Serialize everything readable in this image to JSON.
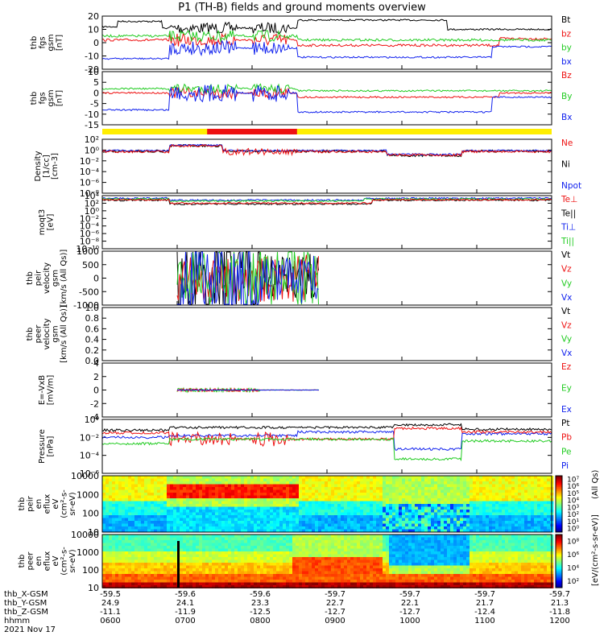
{
  "title": "P1 (TH-B) fields and ground moments overview",
  "colors": {
    "black": "#000000",
    "red": "#ee1111",
    "green": "#22cc22",
    "blue": "#1122ee",
    "orbit_yellow": "#ffee00",
    "orbit_red": "#ee1111"
  },
  "chart_data": [
    {
      "type": "line",
      "ylabel": [
        "thb",
        "fgs",
        "gsm",
        "[nT]"
      ],
      "ylim": [
        -20,
        20
      ],
      "yticks": [
        20,
        10,
        0,
        -10,
        -20
      ],
      "legend": [
        {
          "label": "Bt",
          "color": "#000000"
        },
        {
          "label": "bz",
          "color": "#ee1111"
        },
        {
          "label": "by",
          "color": "#22cc22"
        },
        {
          "label": "bx",
          "color": "#1122ee"
        }
      ]
    },
    {
      "type": "line",
      "ylabel": [
        "thb",
        "fgs",
        "gsm",
        "[nT]"
      ],
      "ylim": [
        -15,
        10
      ],
      "yticks": [
        10,
        5,
        0,
        -5,
        -10,
        -15
      ],
      "legend": [
        {
          "label": "Bz",
          "color": "#ee1111"
        },
        {
          "label": "By",
          "color": "#22cc22"
        },
        {
          "label": "Bx",
          "color": "#1122ee"
        }
      ]
    },
    {
      "type": "line",
      "ylabel": [
        "Density",
        "[1/cc]",
        "[cm-3]"
      ],
      "scale": "log",
      "yticks": [
        "10²",
        "10⁰",
        "10⁻²",
        "10⁻⁴",
        "10⁻⁶",
        "10⁻⁸"
      ],
      "legend": [
        {
          "label": "Ne",
          "color": "#ee1111"
        },
        {
          "label": "Ni",
          "color": "#000000"
        },
        {
          "label": "Npot",
          "color": "#1122ee"
        }
      ]
    },
    {
      "type": "line",
      "ylabel": [
        "moqt3",
        "[eV]"
      ],
      "scale": "log",
      "yticks": [
        "10⁴",
        "10²",
        "10⁰",
        "10⁻²",
        "10⁻⁴",
        "10⁻⁶",
        "10⁻⁸",
        "10⁻¹⁰"
      ],
      "legend": [
        {
          "label": "Te⊥",
          "color": "#ee1111"
        },
        {
          "label": "Te||",
          "color": "#000000"
        },
        {
          "label": "Ti⊥",
          "color": "#1122ee"
        },
        {
          "label": "Ti||",
          "color": "#22cc22"
        }
      ]
    },
    {
      "type": "line",
      "ylabel": [
        "thb",
        "peir",
        "velocity",
        "gsm",
        "[km/s (All Qs)]"
      ],
      "ylim": [
        -1000,
        1000
      ],
      "yticks": [
        1000,
        500,
        0,
        -500,
        -1000
      ],
      "legend": [
        {
          "label": "Vt",
          "color": "#000000"
        },
        {
          "label": "Vz",
          "color": "#ee1111"
        },
        {
          "label": "Vy",
          "color": "#22cc22"
        },
        {
          "label": "Vx",
          "color": "#1122ee"
        }
      ]
    },
    {
      "type": "line",
      "ylabel": [
        "thb",
        "peer",
        "velocity",
        "gsm",
        "[km/s (All Qs)]"
      ],
      "ylim": [
        0,
        1
      ],
      "yticks": [
        "1.0",
        "0.8",
        "0.6",
        "0.4",
        "0.2",
        "0.0"
      ],
      "legend": [
        {
          "label": "Vt",
          "color": "#000000"
        },
        {
          "label": "Vz",
          "color": "#ee1111"
        },
        {
          "label": "Vy",
          "color": "#22cc22"
        },
        {
          "label": "Vx",
          "color": "#1122ee"
        }
      ]
    },
    {
      "type": "line",
      "ylabel": [
        "E=-VxB",
        "[mV/m]"
      ],
      "ylim": [
        -4,
        4
      ],
      "yticks": [
        4,
        2,
        0,
        -2,
        -4
      ],
      "legend": [
        {
          "label": "Ez",
          "color": "#ee1111"
        },
        {
          "label": "Ey",
          "color": "#22cc22"
        },
        {
          "label": "Ex",
          "color": "#1122ee"
        }
      ]
    },
    {
      "type": "line",
      "ylabel": [
        "Pressure",
        "[nPa]"
      ],
      "scale": "log",
      "yticks": [
        "10⁰",
        "10⁻²",
        "10⁻⁴",
        "10⁻⁶"
      ],
      "legend": [
        {
          "label": "Pt",
          "color": "#000000"
        },
        {
          "label": "Pb",
          "color": "#ee1111"
        },
        {
          "label": "Pe",
          "color": "#22cc22"
        },
        {
          "label": "Pi",
          "color": "#1122ee"
        }
      ]
    },
    {
      "type": "heatmap",
      "ylabel": [
        "thb",
        "peir",
        "en",
        "eflux",
        "eV",
        "(cm²-s-",
        "sr-eV)"
      ],
      "yticks": [
        "10000",
        "1000",
        "100",
        "10"
      ]
    },
    {
      "type": "heatmap",
      "ylabel": [
        "thb",
        "peer",
        "en",
        "eflux",
        "eV",
        "(cm²-s-",
        "sr-eV)"
      ],
      "yticks": [
        "10000",
        "1000",
        "100",
        "10"
      ]
    }
  ],
  "colorbar": {
    "label": "[eV/(cm²-s-sr-eV)]",
    "overlay_label": "(All Qs)",
    "ion_ticks": [
      "10⁷",
      "10⁶",
      "10⁵",
      "10⁴",
      "10³",
      "10²",
      "10¹",
      "10⁰"
    ],
    "elec_ticks": [
      "10⁸",
      "10⁶",
      "10⁴",
      "10²"
    ]
  },
  "x_axis": {
    "row_labels": [
      "thb_X-GSM",
      "thb_Y-GSM",
      "thb_Z-GSM",
      "hhmm",
      "2021 Nov 17"
    ],
    "ticks": [
      {
        "x_gsm": "-59.5",
        "y_gsm": "24.9",
        "z_gsm": "-11.1",
        "hhmm": "0600"
      },
      {
        "x_gsm": "-59.6",
        "y_gsm": "24.1",
        "z_gsm": "-11.9",
        "hhmm": "0700"
      },
      {
        "x_gsm": "-59.6",
        "y_gsm": "23.3",
        "z_gsm": "-12.5",
        "hhmm": "0800"
      },
      {
        "x_gsm": "-59.7",
        "y_gsm": "22.7",
        "z_gsm": "-12.7",
        "hhmm": "0900"
      },
      {
        "x_gsm": "-59.7",
        "y_gsm": "22.1",
        "z_gsm": "-12.7",
        "hhmm": "1000"
      },
      {
        "x_gsm": "-59.7",
        "y_gsm": "21.7",
        "z_gsm": "-12.4",
        "hhmm": "1100"
      },
      {
        "x_gsm": "-59.7",
        "y_gsm": "21.3",
        "z_gsm": "-11.8",
        "hhmm": "1200"
      }
    ]
  }
}
